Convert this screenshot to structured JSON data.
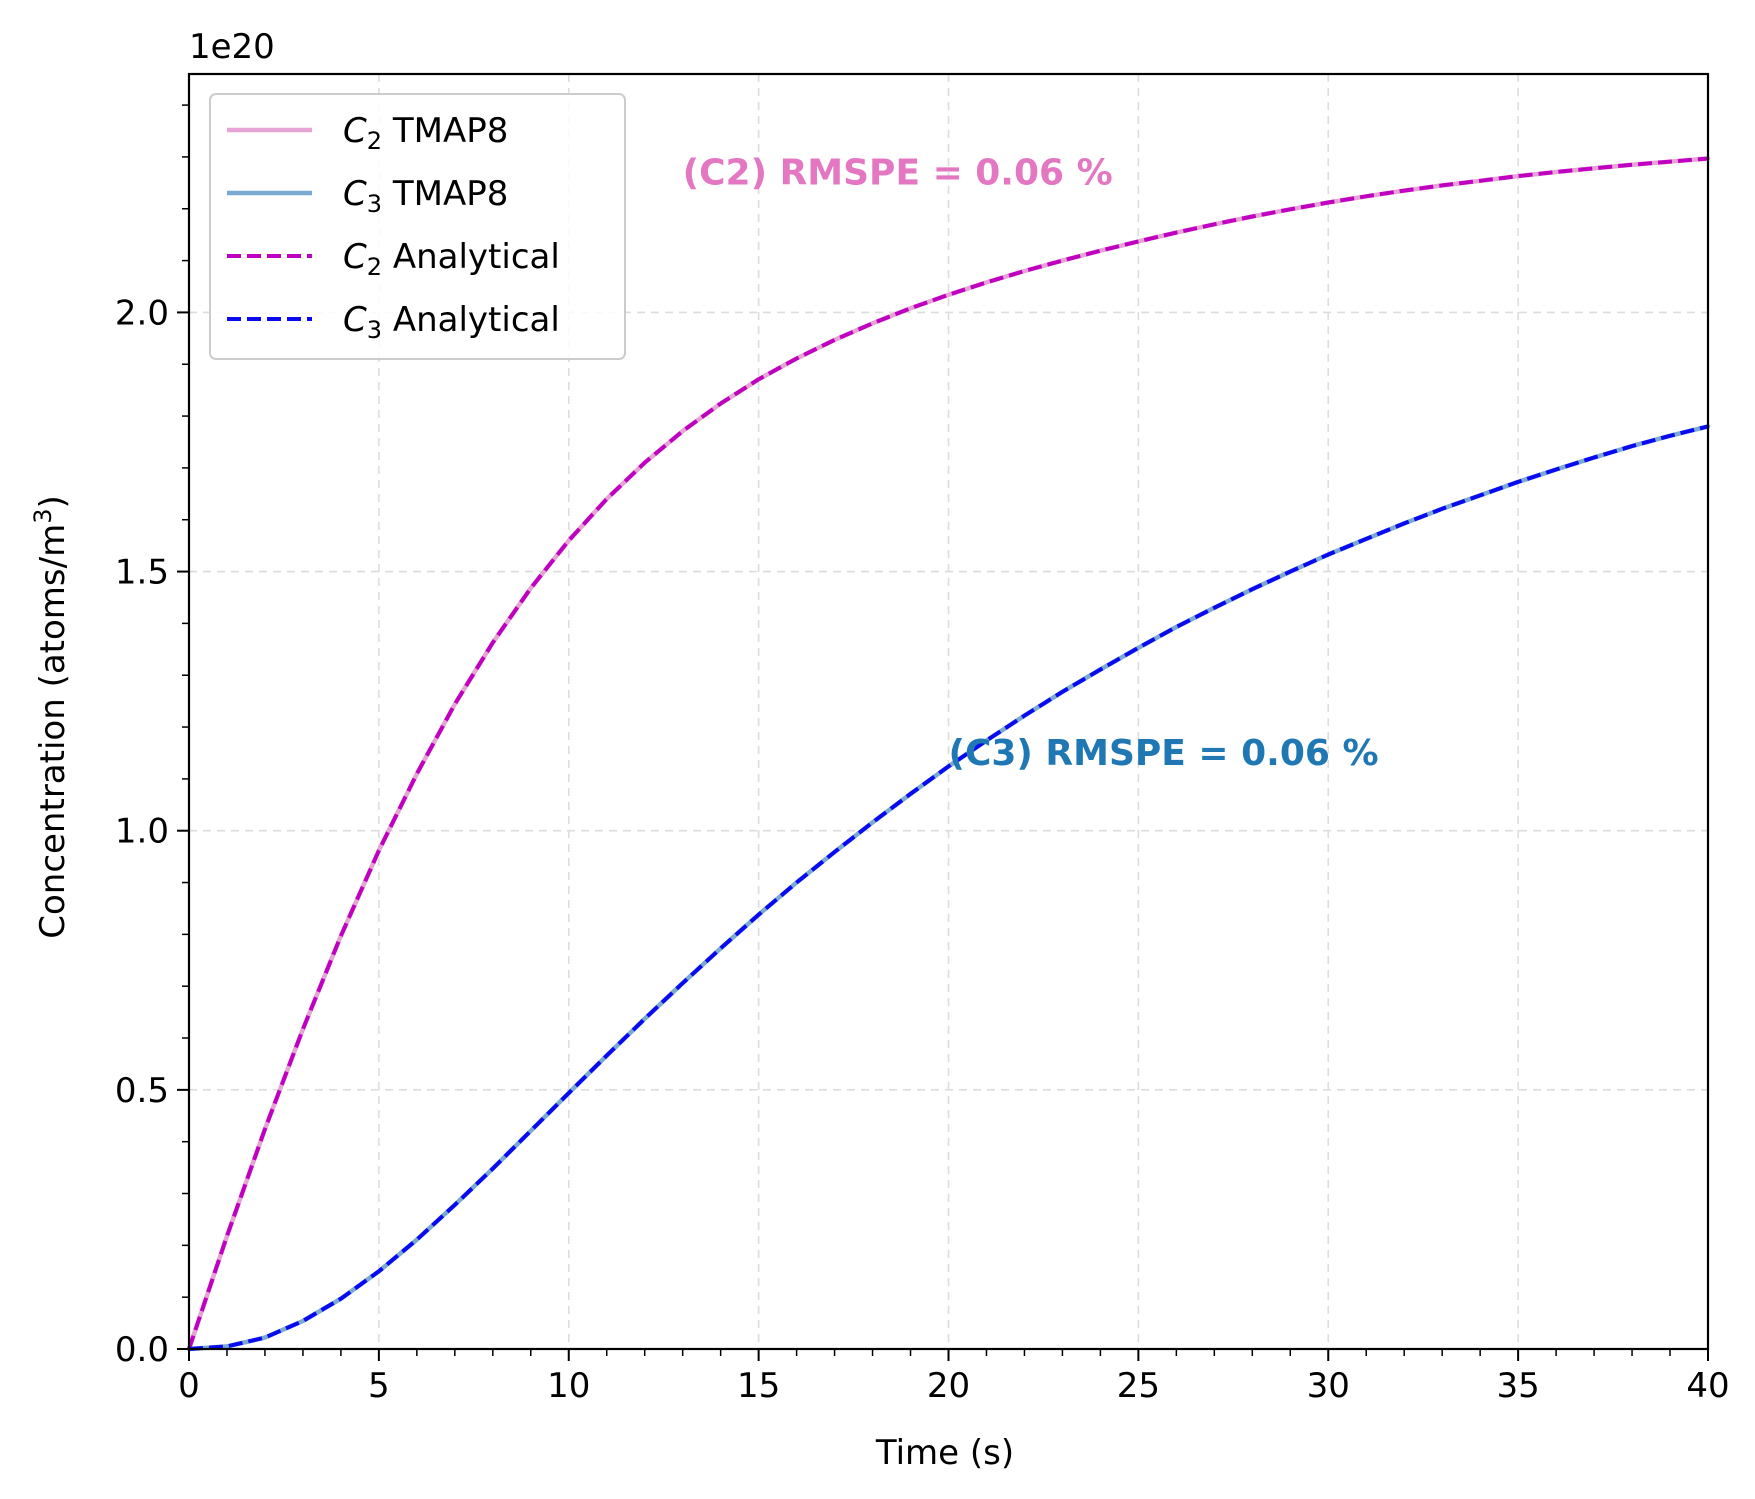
{
  "chart_data": {
    "type": "line",
    "title": "",
    "xlabel": "Time (s)",
    "ylabel_main": "Concentration (atoms/m",
    "ylabel_sup": "3",
    "ylabel_close": ")",
    "offset_text": "1e20",
    "xlim": [
      0,
      40
    ],
    "ylim": [
      0,
      2.46
    ],
    "x_ticks": [
      0,
      5,
      10,
      15,
      20,
      25,
      30,
      35,
      40
    ],
    "x_tick_labels": [
      "0",
      "5",
      "10",
      "15",
      "20",
      "25",
      "30",
      "35",
      "40"
    ],
    "y_ticks": [
      0,
      0.5,
      1.0,
      1.5,
      2.0
    ],
    "y_tick_labels": [
      "0.0",
      "0.5",
      "1.0",
      "1.5",
      "2.0"
    ],
    "grid": true,
    "legend_position": "top-left",
    "x": [
      0,
      1,
      2,
      3,
      4,
      5,
      6,
      7,
      8,
      9,
      10,
      11,
      12,
      13,
      14,
      15,
      16,
      17,
      18,
      19,
      20,
      21,
      22,
      23,
      24,
      25,
      26,
      27,
      28,
      29,
      30,
      31,
      32,
      33,
      34,
      35,
      36,
      37,
      38,
      39,
      40
    ],
    "series": [
      {
        "legend_var": "C",
        "legend_sub": "2",
        "legend_rest": " TMAP8",
        "style": "solid",
        "color": "#e6a3d6",
        "values": [
          0,
          0.218,
          0.424,
          0.617,
          0.797,
          0.962,
          1.11,
          1.244,
          1.363,
          1.468,
          1.56,
          1.64,
          1.71,
          1.771,
          1.824,
          1.871,
          1.911,
          1.947,
          1.979,
          2.008,
          2.034,
          2.058,
          2.08,
          2.1,
          2.119,
          2.137,
          2.154,
          2.17,
          2.185,
          2.199,
          2.212,
          2.224,
          2.235,
          2.245,
          2.254,
          2.263,
          2.271,
          2.278,
          2.285,
          2.291,
          2.297
        ]
      },
      {
        "legend_var": "C",
        "legend_sub": "3",
        "legend_rest": " TMAP8",
        "style": "solid",
        "color": "#7aaad4",
        "values": [
          0,
          0.005,
          0.022,
          0.054,
          0.097,
          0.15,
          0.211,
          0.278,
          0.348,
          0.421,
          0.494,
          0.566,
          0.637,
          0.706,
          0.773,
          0.838,
          0.9,
          0.959,
          1.016,
          1.071,
          1.124,
          1.174,
          1.222,
          1.268,
          1.311,
          1.353,
          1.393,
          1.43,
          1.466,
          1.5,
          1.533,
          1.563,
          1.593,
          1.621,
          1.647,
          1.673,
          1.697,
          1.72,
          1.742,
          1.762,
          1.78
        ]
      },
      {
        "legend_var": "C",
        "legend_sub": "2",
        "legend_rest": " Analytical",
        "style": "dashed",
        "color": "#c000c0",
        "values": [
          0,
          0.218,
          0.424,
          0.617,
          0.797,
          0.962,
          1.11,
          1.244,
          1.363,
          1.468,
          1.56,
          1.64,
          1.71,
          1.771,
          1.824,
          1.871,
          1.911,
          1.947,
          1.979,
          2.008,
          2.034,
          2.058,
          2.08,
          2.1,
          2.119,
          2.137,
          2.154,
          2.17,
          2.185,
          2.199,
          2.212,
          2.224,
          2.235,
          2.245,
          2.254,
          2.263,
          2.271,
          2.278,
          2.285,
          2.291,
          2.297
        ]
      },
      {
        "legend_var": "C",
        "legend_sub": "3",
        "legend_rest": " Analytical",
        "style": "dashed",
        "color": "#0a0af0",
        "values": [
          0,
          0.005,
          0.022,
          0.054,
          0.097,
          0.15,
          0.211,
          0.278,
          0.348,
          0.421,
          0.494,
          0.566,
          0.637,
          0.706,
          0.773,
          0.838,
          0.9,
          0.959,
          1.016,
          1.071,
          1.124,
          1.174,
          1.222,
          1.268,
          1.311,
          1.353,
          1.393,
          1.43,
          1.466,
          1.5,
          1.533,
          1.563,
          1.593,
          1.621,
          1.647,
          1.673,
          1.697,
          1.72,
          1.742,
          1.762,
          1.78
        ]
      }
    ],
    "annotations": [
      {
        "text": "(C2) RMSPE = 0.06 %",
        "color": "#e377c2",
        "x": 13.0,
        "y": 2.27
      },
      {
        "text": "(C3) RMSPE = 0.06 %",
        "color": "#1f77b4",
        "x": 20.0,
        "y": 1.15
      }
    ]
  }
}
